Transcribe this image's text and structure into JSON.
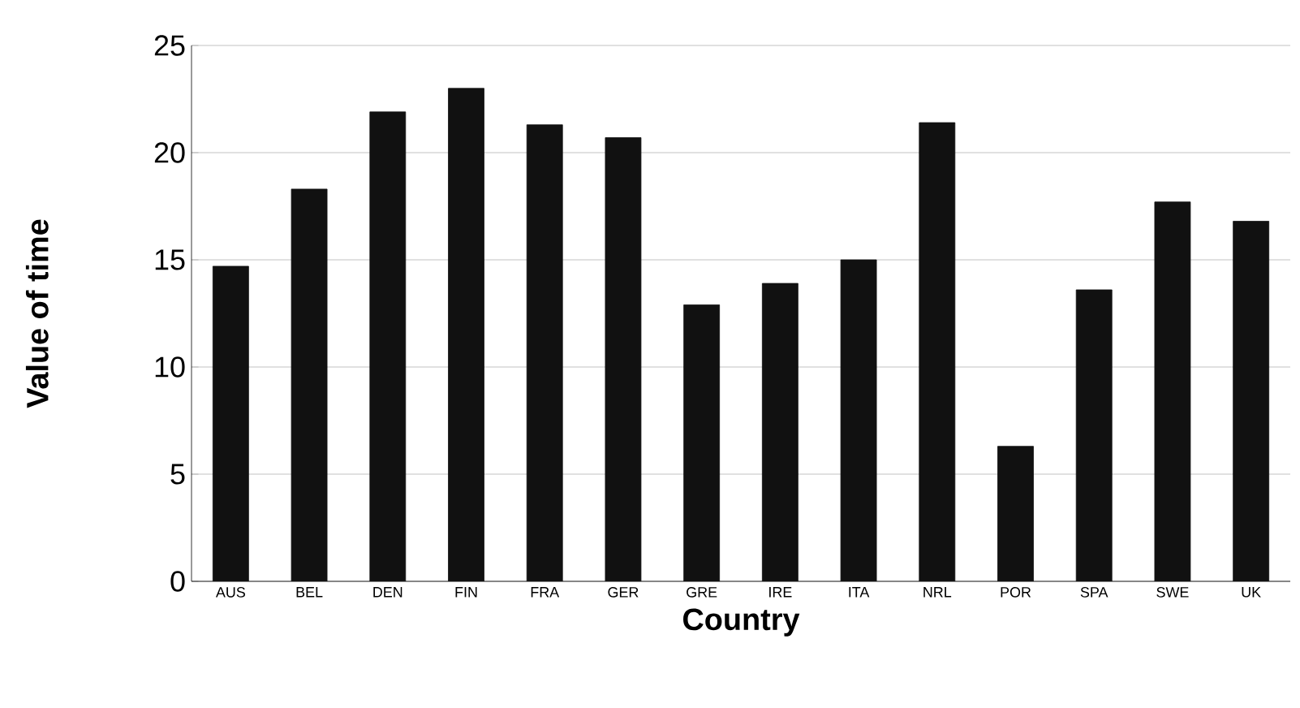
{
  "chart_data": {
    "type": "bar",
    "xlabel": "Country",
    "ylabel": "Value of time",
    "categories": [
      "AUS",
      "BEL",
      "DEN",
      "FIN",
      "FRA",
      "GER",
      "GRE",
      "IRE",
      "ITA",
      "NRL",
      "POR",
      "SPA",
      "SWE",
      "UK"
    ],
    "values": [
      14.7,
      18.3,
      21.9,
      23.0,
      21.3,
      20.7,
      12.9,
      13.9,
      15.0,
      21.4,
      6.3,
      13.6,
      17.7,
      16.8
    ],
    "color": "#111111",
    "ylim": [
      0,
      25
    ],
    "yticks": [
      0,
      5,
      10,
      15,
      20,
      25
    ],
    "grid": "y"
  }
}
